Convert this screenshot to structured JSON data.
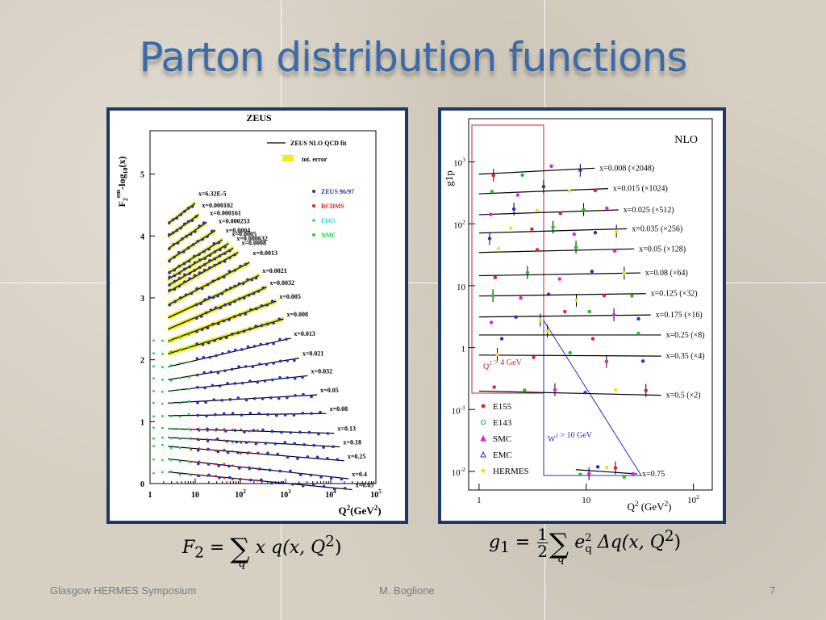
{
  "slide": {
    "title": "Parton distribution functions",
    "footer_left": "Glasgow HERMES Symposium",
    "footer_center": "M. Boglione",
    "footer_right": "7"
  },
  "formulas": {
    "f2": {
      "lhs": "F",
      "lhs_sub": "2",
      "eq": " = ",
      "sum_sub": "q",
      "body": "x q(x, Q",
      "sup": "2",
      "close": ")"
    },
    "g1": {
      "lhs": "g",
      "lhs_sub": "1",
      "eq": " = ",
      "num": "1",
      "den": "2",
      "sum_sub": "q",
      "e": "e",
      "e_sup": "2",
      "e_sub": "q",
      "body": " Δq(x, Q",
      "sup": "2",
      "close": ")"
    }
  },
  "chart_data": [
    {
      "type": "scatter",
      "title": "ZEUS",
      "ylabel": "F2em-log10(x)",
      "ylabel_main": "F",
      "ylabel_sub": "2",
      "ylabel_sup": "em",
      "ylabel_rest": "-log",
      "ylabel_sub2": "10",
      "ylabel_tail": "(x)",
      "xlabel": "Q2(GeV2)",
      "xlabel_main": "Q",
      "xlabel_sup": "2",
      "xlabel_rest": "(GeV",
      "xlabel_sup2": "2",
      "xlabel_tail": ")",
      "xscale": "log",
      "xlim": [
        1,
        100000
      ],
      "ylim": [
        0,
        5.7
      ],
      "xticks": [
        {
          "v": 1,
          "label": "1"
        },
        {
          "v": 10,
          "label": "10"
        },
        {
          "v": 100,
          "label": "10",
          "sup": "2"
        },
        {
          "v": 1000,
          "label": "10",
          "sup": "3"
        },
        {
          "v": 10000,
          "label": "10",
          "sup": "4"
        },
        {
          "v": 100000,
          "label": "10",
          "sup": "5"
        }
      ],
      "yticks": [
        0,
        1,
        2,
        3,
        4,
        5
      ],
      "legend": [
        {
          "label": "ZEUS NLO QCD fit",
          "kind": "line",
          "color": "#000000"
        },
        {
          "label": "tot. error",
          "kind": "band",
          "color": "#f2ec1a"
        },
        {
          "label": "ZEUS 96/97",
          "kind": "dot",
          "color": "#1f2fd0"
        },
        {
          "label": "BCDMS",
          "kind": "tri",
          "color": "#e02020"
        },
        {
          "label": "E665",
          "kind": "dot",
          "color": "#3ad7e0"
        },
        {
          "label": "NMC",
          "kind": "tri",
          "color": "#20d040"
        }
      ],
      "series": [
        {
          "x": "x=6.32E-5",
          "off": 4.199,
          "q0": 2.5,
          "q1": 10,
          "slope": 0.55
        },
        {
          "x": "x=0.000102",
          "off": 3.991,
          "q0": 2.5,
          "q1": 12,
          "slope": 0.52
        },
        {
          "x": "x=0.000161",
          "off": 3.793,
          "q0": 2.5,
          "q1": 18,
          "slope": 0.5
        },
        {
          "x": "x=0.000253",
          "off": 3.597,
          "q0": 2.5,
          "q1": 28,
          "slope": 0.47
        },
        {
          "x": "x=0.0004",
          "off": 3.398,
          "q0": 2.5,
          "q1": 40,
          "slope": 0.45
        },
        {
          "x": "x=0.0005",
          "off": 3.301,
          "q0": 2.5,
          "q1": 55,
          "slope": 0.43
        },
        {
          "x": "x=0.000632",
          "off": 3.199,
          "q0": 2.5,
          "q1": 70,
          "slope": 0.42
        },
        {
          "x": "x=0.0008",
          "off": 3.097,
          "q0": 2.5,
          "q1": 90,
          "slope": 0.41
        },
        {
          "x": "x=0.0013",
          "off": 2.886,
          "q0": 2.5,
          "q1": 160,
          "slope": 0.38
        },
        {
          "x": "x=0.0021",
          "off": 2.678,
          "q0": 2.5,
          "q1": 260,
          "slope": 0.34
        },
        {
          "x": "x=0.0032",
          "off": 2.495,
          "q0": 2.5,
          "q1": 380,
          "slope": 0.31
        },
        {
          "x": "x=0.005",
          "off": 2.301,
          "q0": 2.5,
          "q1": 620,
          "slope": 0.27
        },
        {
          "x": "x=0.008",
          "off": 2.097,
          "q0": 2.5,
          "q1": 900,
          "slope": 0.22
        },
        {
          "x": "x=0.013",
          "off": 1.886,
          "q0": 2.5,
          "q1": 1300,
          "slope": 0.17
        },
        {
          "x": "x=0.021",
          "off": 1.678,
          "q0": 2.5,
          "q1": 2000,
          "slope": 0.12
        },
        {
          "x": "x=0.032",
          "off": 1.495,
          "q0": 2.5,
          "q1": 3100,
          "slope": 0.08
        },
        {
          "x": "x=0.05",
          "off": 1.301,
          "q0": 2.5,
          "q1": 5000,
          "slope": 0.04
        },
        {
          "x": "x=0.08",
          "off": 1.097,
          "q0": 2.5,
          "q1": 8000,
          "slope": 0.01
        },
        {
          "x": "x=0.13",
          "off": 0.886,
          "q0": 2.5,
          "q1": 12000,
          "slope": -0.02
        },
        {
          "x": "x=0.18",
          "off": 0.745,
          "q0": 2.5,
          "q1": 16000,
          "slope": -0.04
        },
        {
          "x": "x=0.25",
          "off": 0.602,
          "q0": 2.5,
          "q1": 20000,
          "slope": -0.06
        },
        {
          "x": "x=0.4",
          "off": 0.398,
          "q0": 2.5,
          "q1": 25000,
          "slope": -0.08
        },
        {
          "x": "x=0.65",
          "off": 0.187,
          "q0": 2.5,
          "q1": 30000,
          "slope": -0.07
        }
      ]
    },
    {
      "type": "scatter",
      "title": "NLO",
      "ylabel": "g1p",
      "ylabel_main": "g",
      "ylabel_sub": "1",
      "ylabel_sup": "p",
      "xlabel": "Q2 (GeV2)",
      "xlabel_main": "Q",
      "xlabel_sup": "2",
      "xlabel_rest": " (GeV",
      "xlabel_sup2": "2",
      "xlabel_tail": ")",
      "xscale": "log",
      "yscale": "log",
      "xlim": [
        0.8,
        150
      ],
      "ylim": [
        0.005,
        5000
      ],
      "xticks": [
        {
          "v": 1,
          "label": "1"
        },
        {
          "v": 10,
          "label": "10"
        },
        {
          "v": 100,
          "label": "10",
          "sup": "2"
        }
      ],
      "yticks": [
        {
          "v": 1000,
          "label": "10",
          "sup": "3"
        },
        {
          "v": 100,
          "label": "10",
          "sup": "2"
        },
        {
          "v": 10,
          "label": "10"
        },
        {
          "v": 1,
          "label": "1"
        },
        {
          "v": 0.1,
          "label": "10",
          "sup": "-1"
        },
        {
          "v": 0.01,
          "label": "10",
          "sup": "-2"
        }
      ],
      "annotations": [
        {
          "label": "Q",
          "sup": "2",
          "rest": " > 4 GeV",
          "sup2": "2",
          "color": "#d02020"
        },
        {
          "label": "W",
          "sup": "2",
          "rest": " > 10 GeV",
          "sup2": "2",
          "color": "#2030c0"
        }
      ],
      "legend": [
        {
          "label": "E155",
          "kind": "dot",
          "color": "#e02020"
        },
        {
          "label": "E143",
          "kind": "circle",
          "color": "#20c020"
        },
        {
          "label": "SMC",
          "kind": "tri",
          "color": "#e020e0"
        },
        {
          "label": "EMC",
          "kind": "otri",
          "color": "#2030d0"
        },
        {
          "label": "HERMES",
          "kind": "star",
          "color": "#f0e020"
        }
      ],
      "series": [
        {
          "label": "x=0.008 (×2048)",
          "y": 700,
          "slope": 0.09
        },
        {
          "label": "x=0.015 (×1024)",
          "y": 330,
          "slope": 0.07
        },
        {
          "label": "x=0.025 (×512)",
          "y": 150,
          "slope": 0.06
        },
        {
          "label": "x=0.035 (×256)",
          "y": 75,
          "slope": 0.05
        },
        {
          "label": "x=0.05 (×128)",
          "y": 36,
          "slope": 0.04
        },
        {
          "label": "x=0.08 (×64)",
          "y": 15,
          "slope": 0.03
        },
        {
          "label": "x=0.125 (×32)",
          "y": 7,
          "slope": 0.025
        },
        {
          "label": "x=0.175 (×16)",
          "y": 3.2,
          "slope": 0.02
        },
        {
          "label": "x=0.25 (×8)",
          "y": 1.6,
          "slope": 0.0
        },
        {
          "label": "x=0.35 (×4)",
          "y": 0.75,
          "slope": -0.01
        },
        {
          "label": "x=0.5 (×2)",
          "y": 0.19,
          "slope": -0.04
        },
        {
          "label": "x=0.75",
          "y": 0.012,
          "slope": -0.12
        }
      ]
    }
  ]
}
